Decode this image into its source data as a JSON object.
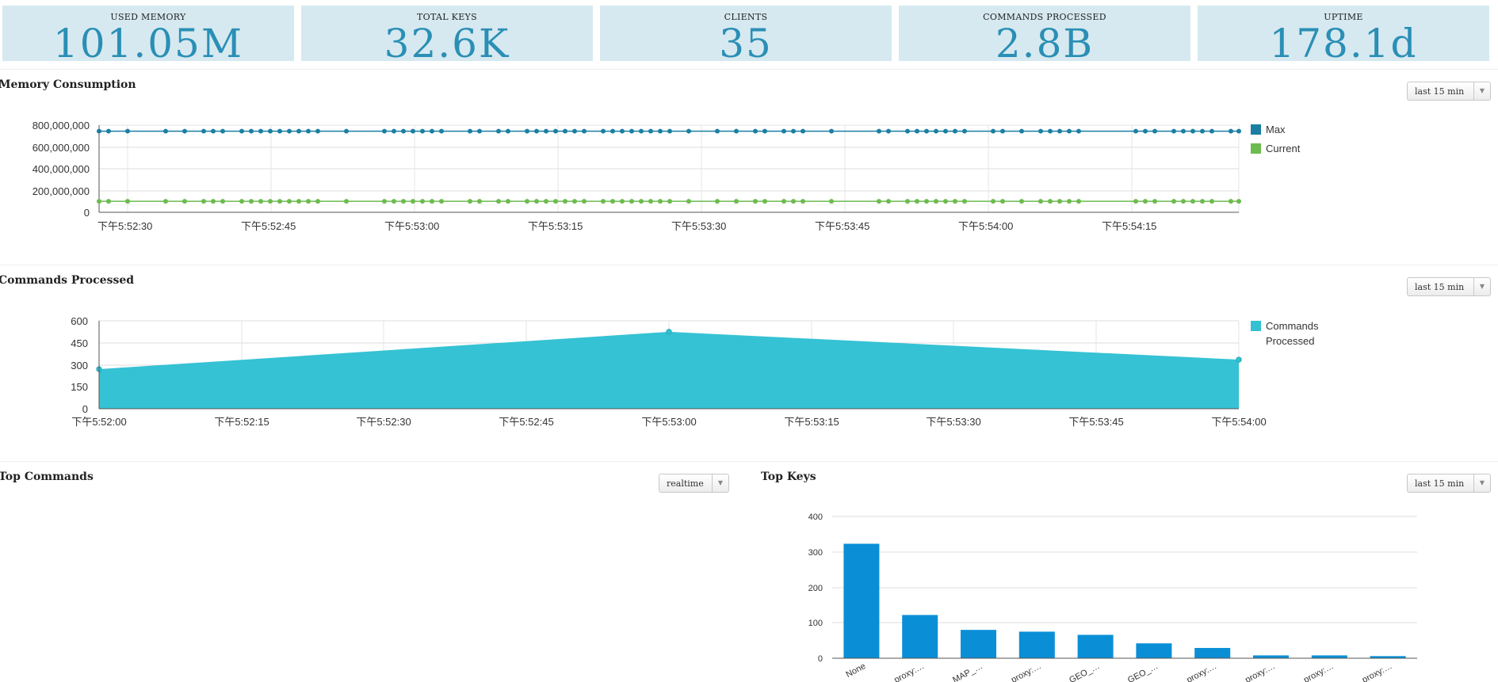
{
  "stats": [
    {
      "label": "USED MEMORY",
      "value": "101.05M"
    },
    {
      "label": "TOTAL KEYS",
      "value": "32.6K"
    },
    {
      "label": "CLIENTS",
      "value": "35"
    },
    {
      "label": "COMMANDS PROCESSED",
      "value": "2.8B"
    },
    {
      "label": "UPTIME",
      "value": "178.1d"
    }
  ],
  "memory": {
    "title": "Memory Consumption",
    "range_label": "last 15 min",
    "y_ticks": [
      "800,000,000",
      "600,000,000",
      "400,000,000",
      "200,000,000",
      "0"
    ],
    "x_ticks": [
      "下午5:52:30",
      "下午5:52:45",
      "下午5:53:00",
      "下午5:53:15",
      "下午5:53:30",
      "下午5:53:45",
      "下午5:54:00",
      "下午5:54:15"
    ],
    "legend": [
      {
        "name": "Max",
        "color": "#1a7fa3"
      },
      {
        "name": "Current",
        "color": "#6cbb4e"
      }
    ]
  },
  "commands": {
    "title": "Commands Processed",
    "range_label": "last 15 min",
    "y_ticks": [
      "600",
      "450",
      "300",
      "150",
      "0"
    ],
    "x_ticks": [
      "下午5:52:00",
      "下午5:52:15",
      "下午5:52:30",
      "下午5:52:45",
      "下午5:53:00",
      "下午5:53:15",
      "下午5:53:30",
      "下午5:53:45",
      "下午5:54:00"
    ],
    "legend_line1": "Commands",
    "legend_line2": "Processed",
    "color": "#31c1d3"
  },
  "top_commands": {
    "title": "Top Commands",
    "range_label": "realtime"
  },
  "top_keys": {
    "title": "Top Keys",
    "range_label": "last 15 min",
    "y_ticks": [
      "400",
      "300",
      "200",
      "100",
      "0"
    ],
    "bar_color": "#0a8fd6"
  },
  "chart_data": [
    {
      "type": "line",
      "title": "Memory Consumption",
      "ylim": [
        0,
        800000000
      ],
      "x_range": [
        "下午5:52:28",
        "下午5:54:27"
      ],
      "series": [
        {
          "name": "Max",
          "constant_value": 745000000
        },
        {
          "name": "Current",
          "constant_value": 101050000
        }
      ]
    },
    {
      "type": "area",
      "title": "Commands Processed",
      "ylim": [
        0,
        600
      ],
      "x": [
        "下午5:52:00",
        "下午5:53:00",
        "下午5:54:00"
      ],
      "series": [
        {
          "name": "Commands Processed",
          "values": [
            270,
            525,
            335
          ]
        }
      ]
    },
    {
      "type": "bar",
      "title": "Top Keys",
      "ylim": [
        0,
        400
      ],
      "categories": [
        "None",
        "proxy:…",
        "MAP_…",
        "proxy:…",
        "GEO_…",
        "GEO_…",
        "proxy:…",
        "proxy:…",
        "proxy:…",
        "proxy:…"
      ],
      "tick_labels": [
        "None",
        "proxy:…",
        "MAP_…",
        "proxy:…",
        "GEO_…",
        "GEO_…",
        "proxy:…",
        "proxy:…",
        "proxy:…",
        "proxy:…"
      ],
      "values": [
        323,
        122,
        80,
        75,
        66,
        42,
        29,
        8,
        8,
        6
      ]
    }
  ]
}
